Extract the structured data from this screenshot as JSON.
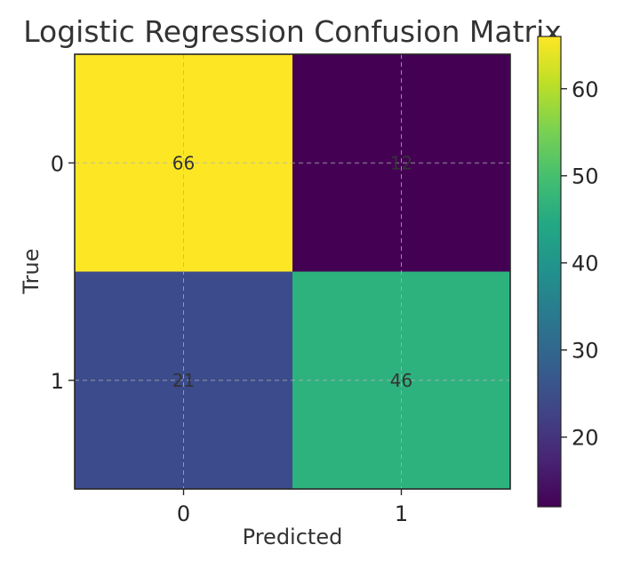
{
  "chart_data": {
    "type": "heatmap",
    "title": "Logistic Regression Confusion Matrix",
    "xlabel": "Predicted",
    "ylabel": "True",
    "x_categories": [
      "0",
      "1"
    ],
    "y_categories": [
      "0",
      "1"
    ],
    "matrix": [
      [
        66,
        12
      ],
      [
        21,
        46
      ]
    ],
    "colormap": "viridis",
    "colorbar": {
      "range": [
        12,
        66
      ],
      "ticks": [
        20,
        30,
        40,
        50,
        60
      ]
    },
    "grid": true,
    "colors": {
      "66": "#fde725",
      "12": "#440154",
      "21": "#3b4b8c",
      "46": "#2db27d"
    }
  }
}
